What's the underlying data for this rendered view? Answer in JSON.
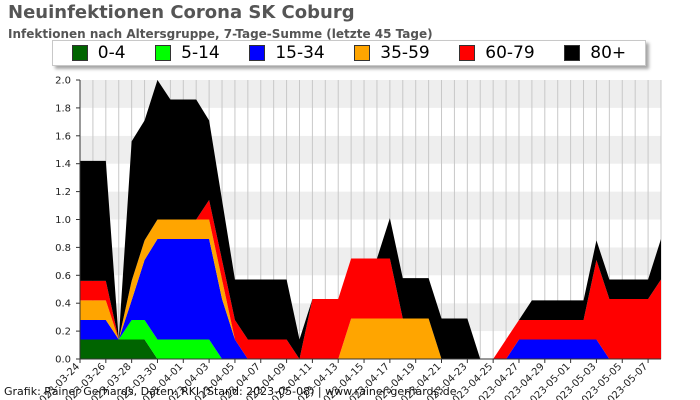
{
  "header": {
    "title": "Neuinfektionen Corona SK Coburg",
    "subtitle": "Infektionen nach Altersgruppe, 7-Tage-Summe (letzte 45 Tage)"
  },
  "footer": {
    "credit": "Grafik: Rainer Gerhards, Daten: RKI (Stand: 2023-05-08) | www.rainer-gerhards.de"
  },
  "chart_data": {
    "type": "area",
    "stacked": true,
    "ylim": [
      0,
      2.0
    ],
    "yticks": [
      "0.0",
      "0.2",
      "0.4",
      "0.6",
      "0.8",
      "1.0",
      "1.2",
      "1.4",
      "1.6",
      "1.8",
      "2.0"
    ],
    "grid": true,
    "legend_position": "top",
    "x": [
      "2023-03-24",
      "2023-03-25",
      "2023-03-26",
      "2023-03-27",
      "2023-03-28",
      "2023-03-29",
      "2023-03-30",
      "2023-03-31",
      "2023-04-01",
      "2023-04-02",
      "2023-04-03",
      "2023-04-04",
      "2023-04-05",
      "2023-04-06",
      "2023-04-07",
      "2023-04-08",
      "2023-04-09",
      "2023-04-10",
      "2023-04-11",
      "2023-04-12",
      "2023-04-13",
      "2023-04-14",
      "2023-04-15",
      "2023-04-16",
      "2023-04-17",
      "2023-04-18",
      "2023-04-19",
      "2023-04-20",
      "2023-04-21",
      "2023-04-22",
      "2023-04-23",
      "2023-04-24",
      "2023-04-25",
      "2023-04-26",
      "2023-04-27",
      "2023-04-28",
      "2023-04-29",
      "2023-04-30",
      "2023-05-01",
      "2023-05-02",
      "2023-05-03",
      "2023-05-04",
      "2023-05-05",
      "2023-05-06",
      "2023-05-07",
      "2023-05-08"
    ],
    "xtick_labels": [
      "2023-03-24",
      "2023-03-26",
      "2023-03-28",
      "2023-03-30",
      "2023-04-01",
      "2023-04-03",
      "2023-04-05",
      "2023-04-07",
      "2023-04-09",
      "2023-04-11",
      "2023-04-13",
      "2023-04-15",
      "2023-04-17",
      "2023-04-19",
      "2023-04-21",
      "2023-04-23",
      "2023-04-25",
      "2023-04-27",
      "2023-04-29",
      "2023-05-01",
      "2023-05-03",
      "2023-05-05",
      "2023-05-07"
    ],
    "series": [
      {
        "name": "0-4",
        "color": "#006400",
        "values": [
          0.14,
          0.14,
          0.14,
          0.14,
          0.14,
          0.14,
          0.0,
          0.0,
          0.0,
          0.0,
          0.0,
          0.0,
          0.0,
          0.0,
          0.0,
          0.0,
          0.0,
          0.0,
          0.0,
          0.0,
          0.0,
          0.0,
          0.0,
          0.0,
          0.0,
          0.0,
          0.0,
          0.0,
          0.0,
          0.0,
          0.0,
          0.0,
          0.0,
          0.0,
          0.0,
          0.0,
          0.0,
          0.0,
          0.0,
          0.0,
          0.0,
          0.0,
          0.0,
          0.0,
          0.0,
          0.0
        ]
      },
      {
        "name": "5-14",
        "color": "#00ff00",
        "values": [
          0.0,
          0.0,
          0.0,
          0.0,
          0.14,
          0.14,
          0.14,
          0.14,
          0.14,
          0.14,
          0.14,
          0.0,
          0.0,
          0.0,
          0.0,
          0.0,
          0.0,
          0.0,
          0.0,
          0.0,
          0.0,
          0.0,
          0.0,
          0.0,
          0.0,
          0.0,
          0.0,
          0.0,
          0.0,
          0.0,
          0.0,
          0.0,
          0.0,
          0.0,
          0.0,
          0.0,
          0.0,
          0.0,
          0.0,
          0.0,
          0.0,
          0.0,
          0.0,
          0.0,
          0.0,
          0.0
        ]
      },
      {
        "name": "15-34",
        "color": "#0000ff",
        "values": [
          0.14,
          0.14,
          0.14,
          0.0,
          0.14,
          0.43,
          0.72,
          0.72,
          0.72,
          0.72,
          0.72,
          0.43,
          0.14,
          0.0,
          0.0,
          0.0,
          0.0,
          0.0,
          0.0,
          0.0,
          0.0,
          0.0,
          0.0,
          0.0,
          0.0,
          0.0,
          0.0,
          0.0,
          0.0,
          0.0,
          0.0,
          0.0,
          0.0,
          0.0,
          0.14,
          0.14,
          0.14,
          0.14,
          0.14,
          0.14,
          0.14,
          0.0,
          0.0,
          0.0,
          0.0,
          0.0
        ]
      },
      {
        "name": "35-59",
        "color": "#ffa500",
        "values": [
          0.14,
          0.14,
          0.14,
          0.0,
          0.14,
          0.14,
          0.14,
          0.14,
          0.14,
          0.14,
          0.14,
          0.14,
          0.0,
          0.0,
          0.0,
          0.0,
          0.0,
          0.0,
          0.0,
          0.0,
          0.0,
          0.29,
          0.29,
          0.29,
          0.29,
          0.29,
          0.29,
          0.29,
          0.0,
          0.0,
          0.0,
          0.0,
          0.0,
          0.0,
          0.0,
          0.0,
          0.0,
          0.0,
          0.0,
          0.0,
          0.0,
          0.0,
          0.0,
          0.0,
          0.0,
          0.0
        ]
      },
      {
        "name": "60-79",
        "color": "#ff0000",
        "values": [
          0.14,
          0.14,
          0.14,
          0.0,
          0.0,
          0.0,
          0.0,
          0.0,
          0.0,
          0.0,
          0.14,
          0.14,
          0.14,
          0.14,
          0.14,
          0.14,
          0.14,
          0.0,
          0.43,
          0.43,
          0.43,
          0.43,
          0.43,
          0.43,
          0.43,
          0.0,
          0.0,
          0.0,
          0.0,
          0.0,
          0.0,
          0.0,
          0.0,
          0.14,
          0.14,
          0.14,
          0.14,
          0.14,
          0.14,
          0.14,
          0.57,
          0.43,
          0.43,
          0.43,
          0.43,
          0.57
        ]
      },
      {
        "name": "80+",
        "color": "#000000",
        "values": [
          0.86,
          0.86,
          0.86,
          0.0,
          1.0,
          0.86,
          1.0,
          0.86,
          0.86,
          0.86,
          0.57,
          0.43,
          0.29,
          0.43,
          0.43,
          0.43,
          0.43,
          0.14,
          0.0,
          0.0,
          0.0,
          0.0,
          0.0,
          0.0,
          0.29,
          0.29,
          0.29,
          0.29,
          0.29,
          0.29,
          0.29,
          0.0,
          0.0,
          0.0,
          0.0,
          0.14,
          0.14,
          0.14,
          0.14,
          0.14,
          0.14,
          0.14,
          0.14,
          0.14,
          0.14,
          0.29
        ]
      }
    ]
  }
}
